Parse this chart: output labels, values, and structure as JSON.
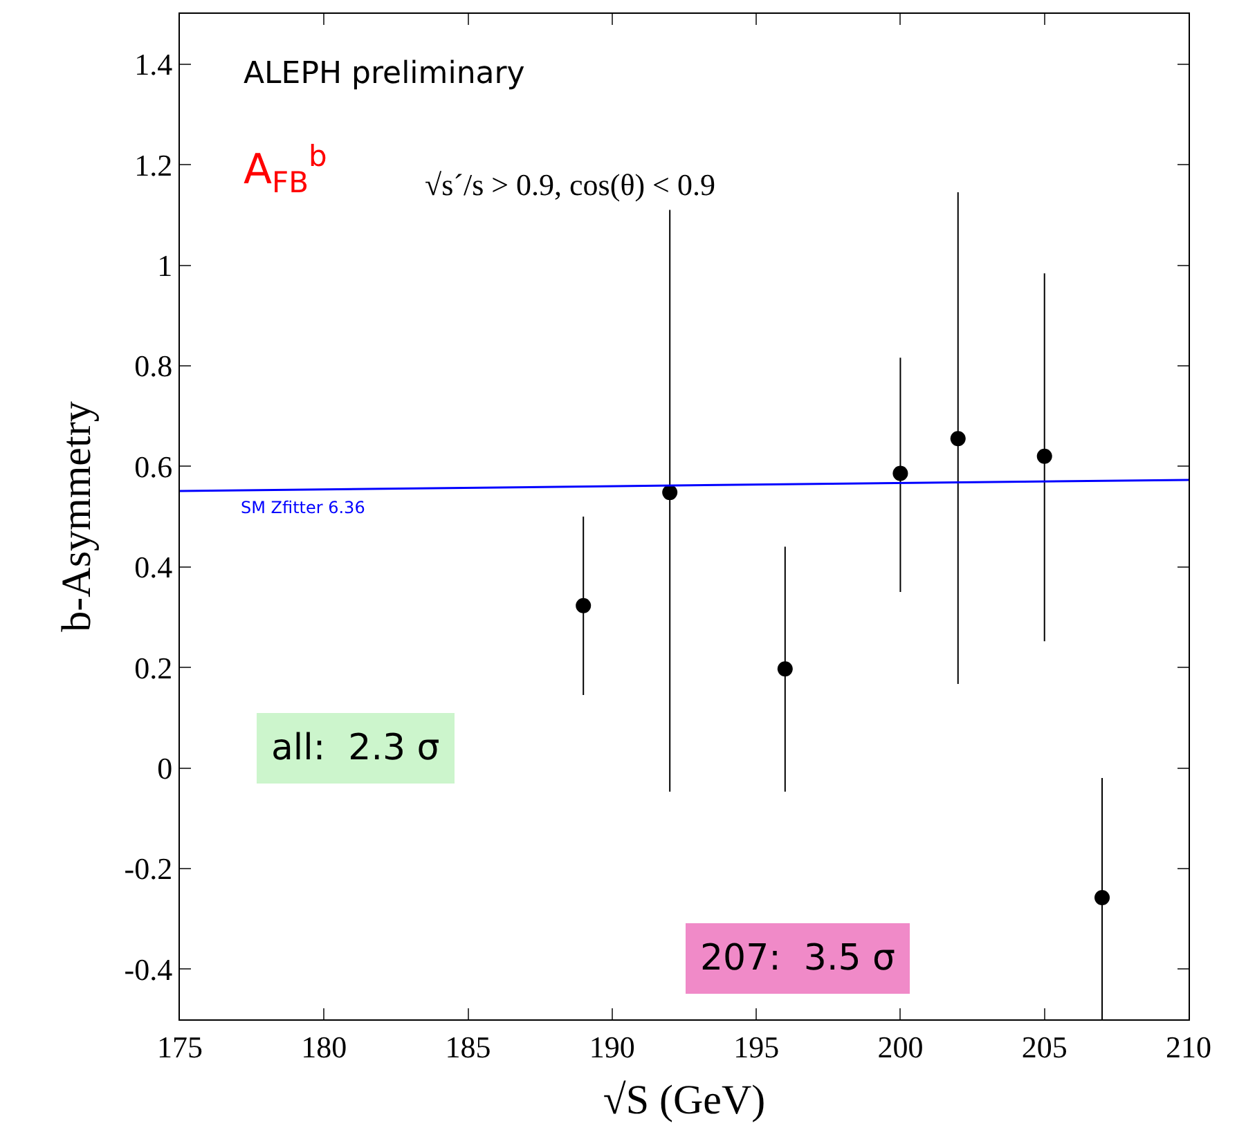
{
  "chart_data": {
    "type": "scatter",
    "xlabel": "√S (GeV)",
    "ylabel": "b-Asymmetry",
    "xlim": [
      175,
      210
    ],
    "xticks": [
      175,
      180,
      185,
      190,
      195,
      200,
      205,
      210
    ],
    "ylim": [
      -0.5,
      1.5
    ],
    "yticks": [
      -0.4,
      -0.2,
      0,
      0.2,
      0.4,
      0.6,
      0.8,
      1,
      1.2,
      1.4
    ],
    "series": [
      {
        "marker": "circle",
        "color": "#000000",
        "x": [
          189,
          192,
          196,
          200,
          202,
          205,
          207
        ],
        "values": [
          0.323,
          0.548,
          0.197,
          0.586,
          0.655,
          0.62,
          -0.258
        ],
        "errors": [
          [
            0.145,
            0.5
          ],
          [
            -0.047,
            1.11
          ],
          [
            -0.047,
            0.44
          ],
          [
            0.35,
            0.816
          ],
          [
            0.167,
            1.145
          ],
          [
            0.252,
            0.984
          ],
          [
            -0.5,
            -0.02
          ]
        ]
      },
      {
        "type": "line",
        "name": "SM Zfitter 6.36",
        "color": "#0000ff",
        "x": [
          175,
          210
        ],
        "values": [
          0.551,
          0.573
        ]
      }
    ],
    "annotations": [
      "ALEPH preliminary",
      "A$_{FB}$$^{b}$",
      "√s´/s > 0.9, cos(θ) < 0.9",
      "all:  2.3 σ",
      "207:  3.5 σ"
    ]
  }
}
